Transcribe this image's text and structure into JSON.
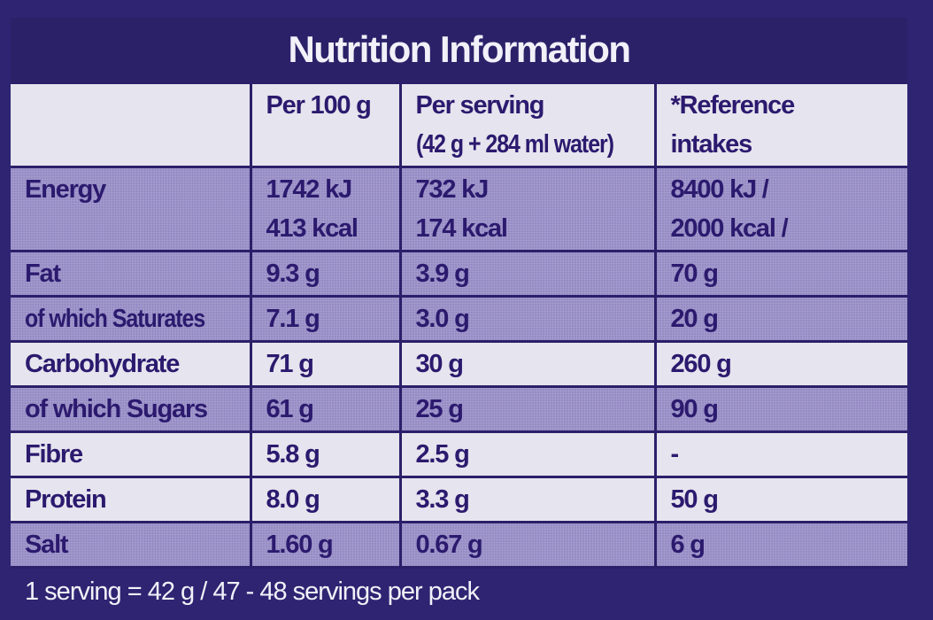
{
  "title": "Nutrition Information",
  "headers": [
    "",
    "Per 100 g",
    "Per serving\n(42 g + 284 ml water)",
    "*Reference intakes"
  ],
  "header_lines": {
    "per100": "Per 100 g",
    "serving_1": "Per serving",
    "serving_2": "(42 g + 284 ml water)",
    "ref_1": "*Reference",
    "ref_2": "intakes"
  },
  "energy": {
    "label": "Energy",
    "per100_kj": "1742 kJ",
    "per100_kcal": "413 kcal",
    "serving_kj": "732 kJ",
    "serving_kcal": "174 kcal",
    "ref_kj": "8400 kJ /",
    "ref_kcal": "2000 kcal /"
  },
  "rows": [
    {
      "label": "Fat",
      "per100": "9.3 g",
      "serving": "3.9 g",
      "ref": "70 g"
    },
    {
      "label": "of which Saturates",
      "per100": "7.1 g",
      "serving": "3.0 g",
      "ref": "20 g"
    },
    {
      "label": "Carbohydrate",
      "per100": "71 g",
      "serving": "30 g",
      "ref": "260 g"
    },
    {
      "label": "of which Sugars",
      "per100": "61 g",
      "serving": "25 g",
      "ref": "90 g"
    },
    {
      "label": "Fibre",
      "per100": "5.8 g",
      "serving": "2.5 g",
      "ref": "-"
    },
    {
      "label": "Protein",
      "per100": "8.0 g",
      "serving": "3.3 g",
      "ref": "50 g"
    },
    {
      "label": "Salt",
      "per100": "1.60 g",
      "serving": "0.67 g",
      "ref": "6 g"
    }
  ],
  "footer": "1 serving = 42 g / 47 - 48 servings per pack",
  "colors": {
    "background": "#2e2472",
    "text": "#2b1a6e",
    "shade": "#a299cc",
    "light": "#e6e4ee"
  }
}
